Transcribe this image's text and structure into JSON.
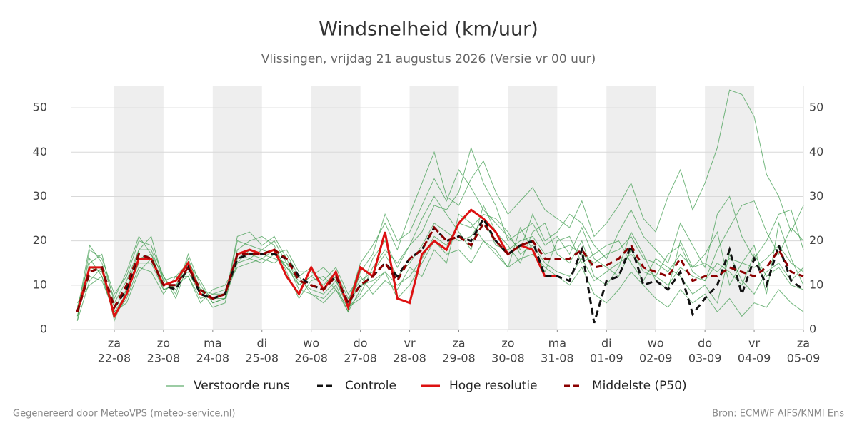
{
  "chart_data": {
    "type": "line",
    "title": "Windsnelheid (km/uur)",
    "subtitle": "Vlissingen, vrijdag 21 augustus 2026 (Versie vr 00 uur)",
    "footer_left": "Gegenereerd door MeteoVPS (meteo-service.nl)",
    "footer_right": "Bron: ECMWF AIFS/KNMI Ens",
    "xlim": [
      0.13,
      15
    ],
    "ylim": [
      0,
      55
    ],
    "yticks": [
      0,
      10,
      20,
      30,
      40,
      50
    ],
    "grid": true,
    "xticks": [
      {
        "value": 1,
        "label": "za",
        "date": "22-08"
      },
      {
        "value": 2,
        "label": "zo",
        "date": "23-08"
      },
      {
        "value": 3,
        "label": "ma",
        "date": "24-08"
      },
      {
        "value": 4,
        "label": "di",
        "date": "25-08"
      },
      {
        "value": 5,
        "label": "wo",
        "date": "26-08"
      },
      {
        "value": 6,
        "label": "do",
        "date": "27-08"
      },
      {
        "value": 7,
        "label": "vr",
        "date": "28-08"
      },
      {
        "value": 8,
        "label": "za",
        "date": "29-08"
      },
      {
        "value": 9,
        "label": "zo",
        "date": "30-08"
      },
      {
        "value": 10,
        "label": "ma",
        "date": "31-08"
      },
      {
        "value": 11,
        "label": "di",
        "date": "01-09"
      },
      {
        "value": 12,
        "label": "wo",
        "date": "02-09"
      },
      {
        "value": 13,
        "label": "do",
        "date": "03-09"
      },
      {
        "value": 14,
        "label": "vr",
        "date": "04-09"
      },
      {
        "value": 15,
        "label": "za",
        "date": "05-09"
      }
    ],
    "x": [
      0.25,
      0.5,
      0.75,
      1,
      1.25,
      1.5,
      1.75,
      2,
      2.25,
      2.5,
      2.75,
      3,
      3.25,
      3.5,
      3.75,
      4,
      4.25,
      4.5,
      4.75,
      5,
      5.25,
      5.5,
      5.75,
      6,
      6.25,
      6.5,
      6.75,
      7,
      7.25,
      7.5,
      7.75,
      8,
      8.25,
      8.5,
      8.75,
      9,
      9.25,
      9.5,
      9.75,
      10,
      10.25,
      10.5,
      10.75,
      11,
      11.25,
      11.5,
      11.75,
      12,
      12.25,
      12.5,
      12.75,
      13,
      13.25,
      13.5,
      13.75,
      14,
      14.25,
      14.5,
      14.75,
      15
    ],
    "ensemble": {
      "name": "Verstoorde runs",
      "color": "#3a9a4a",
      "members": [
        [
          2,
          18,
          16,
          8,
          12,
          20,
          19,
          12,
          8,
          17,
          10,
          6,
          7,
          20,
          19,
          18,
          20,
          15,
          9,
          8,
          7,
          10,
          4,
          9,
          16,
          20,
          14,
          19,
          25,
          30,
          26,
          22,
          18,
          28,
          22,
          19,
          15,
          22,
          24,
          17,
          15,
          20,
          12,
          10,
          14,
          22,
          17,
          11,
          9,
          20,
          14,
          17,
          22,
          10,
          15,
          19,
          8,
          24,
          16,
          10
        ],
        [
          6,
          10,
          12,
          3,
          7,
          14,
          13,
          8,
          12,
          12,
          6,
          9,
          10,
          15,
          16,
          15,
          17,
          18,
          13,
          13,
          11,
          14,
          8,
          12,
          8,
          11,
          9,
          14,
          12,
          18,
          15,
          26,
          24,
          20,
          17,
          14,
          23,
          18,
          13,
          20,
          21,
          15,
          17,
          19,
          20,
          15,
          11,
          16,
          14,
          12,
          8,
          10,
          6,
          17,
          11,
          8,
          13,
          15,
          11,
          14
        ],
        [
          3,
          15,
          17,
          6,
          11,
          18,
          21,
          11,
          9,
          16,
          9,
          5,
          6,
          18,
          20,
          21,
          19,
          13,
          7,
          11,
          12,
          9,
          4,
          13,
          17,
          26,
          20,
          22,
          28,
          34,
          29,
          36,
          32,
          27,
          24,
          21,
          18,
          26,
          20,
          22,
          26,
          24,
          19,
          16,
          22,
          27,
          21,
          18,
          15,
          24,
          19,
          14,
          26,
          30,
          21,
          16,
          20,
          26,
          27,
          18
        ],
        [
          5,
          12,
          11,
          4,
          8,
          15,
          15,
          9,
          10,
          12,
          7,
          8,
          9,
          14,
          15,
          16,
          15,
          17,
          12,
          8,
          6,
          9,
          5,
          7,
          10,
          13,
          7,
          10,
          15,
          20,
          17,
          18,
          15,
          20,
          18,
          14,
          16,
          17,
          14,
          12,
          10,
          14,
          8,
          6,
          9,
          13,
          10,
          7,
          5,
          9,
          6,
          8,
          4,
          7,
          3,
          6,
          5,
          9,
          6,
          4
        ],
        [
          4,
          19,
          15,
          7,
          13,
          21,
          17,
          12,
          7,
          15,
          11,
          6,
          7,
          21,
          22,
          19,
          21,
          16,
          10,
          12,
          14,
          11,
          6,
          15,
          19,
          24,
          18,
          26,
          33,
          40,
          30,
          28,
          34,
          38,
          31,
          26,
          29,
          32,
          27,
          25,
          23,
          29,
          21,
          24,
          28,
          33,
          25,
          22,
          30,
          36,
          27,
          33,
          41,
          54,
          53,
          48,
          35,
          30,
          22,
          28
        ],
        [
          3,
          14,
          13,
          5,
          9,
          16,
          17,
          10,
          11,
          13,
          8,
          7,
          8,
          16,
          17,
          16,
          18,
          14,
          10,
          12,
          10,
          13,
          7,
          11,
          13,
          17,
          12,
          15,
          19,
          24,
          22,
          20,
          21,
          25,
          19,
          18,
          20,
          21,
          17,
          18,
          19,
          17,
          15,
          17,
          18,
          21,
          16,
          15,
          13,
          17,
          14,
          15,
          13,
          16,
          15,
          14,
          16,
          19,
          15,
          13
        ],
        [
          2,
          11,
          14,
          2,
          9,
          18,
          18,
          11,
          12,
          15,
          9,
          8,
          8,
          17,
          16,
          18,
          17,
          14,
          11,
          9,
          8,
          11,
          5,
          8,
          14,
          18,
          15,
          19,
          22,
          28,
          27,
          31,
          41,
          33,
          28,
          20,
          22,
          24,
          19,
          21,
          17,
          23,
          16,
          14,
          12,
          18,
          13,
          12,
          10,
          14,
          12,
          11,
          18,
          23,
          28,
          29,
          22,
          17,
          23,
          20
        ],
        [
          5,
          16,
          12,
          4,
          6,
          13,
          16,
          9,
          10,
          14,
          8,
          7,
          7,
          15,
          18,
          17,
          16,
          15,
          12,
          14,
          9,
          12,
          6,
          10,
          11,
          13,
          10,
          12,
          16,
          21,
          19,
          24,
          23,
          26,
          25,
          22,
          17,
          19,
          15,
          13,
          12,
          16,
          11,
          13,
          15,
          17,
          14,
          12,
          17,
          19,
          13,
          11,
          15,
          13,
          10,
          17,
          12,
          14,
          10,
          9
        ]
      ]
    },
    "series": [
      {
        "name": "Controle",
        "color": "#111111",
        "dash": true,
        "values": [
          4,
          13,
          14,
          5,
          9,
          17,
          16,
          10,
          9,
          14,
          8,
          7,
          8,
          16,
          17,
          17,
          17,
          16,
          12,
          10,
          9,
          12,
          6,
          10,
          12,
          15,
          12,
          16,
          18,
          23,
          20,
          21,
          20,
          25,
          20,
          17,
          19,
          20,
          12,
          12,
          11,
          18,
          1.5,
          11,
          12,
          19,
          10,
          11,
          9,
          13,
          3.5,
          7,
          10,
          18,
          8,
          16,
          10,
          19,
          11,
          9
        ]
      },
      {
        "name": "Hoge resolutie",
        "color": "#dd1111",
        "dash": false,
        "values": [
          4,
          14,
          14,
          3,
          8,
          16,
          16,
          10,
          11,
          15,
          8,
          7,
          8,
          17,
          18,
          17,
          18,
          12,
          8,
          14,
          9,
          13,
          5,
          14,
          12,
          22,
          7,
          6,
          17,
          20,
          18,
          24,
          27,
          25,
          22,
          17,
          19,
          18,
          12,
          12,
          null,
          null,
          null,
          null,
          null,
          null,
          null,
          null,
          null,
          null,
          null,
          null,
          null,
          null,
          null,
          null,
          null,
          null,
          null,
          null
        ]
      },
      {
        "name": "Middelste (P50)",
        "color": "#8b0000",
        "dash": true,
        "values": [
          4,
          13,
          14,
          5,
          10,
          17,
          16,
          10,
          10,
          14,
          9,
          7,
          8,
          17,
          17,
          17,
          18,
          16,
          11,
          10,
          9,
          12,
          6,
          10,
          12,
          15,
          11,
          16,
          18,
          23,
          20,
          21,
          19,
          24,
          20,
          17,
          19,
          20,
          16,
          16,
          16,
          18,
          14,
          14.5,
          16,
          19,
          14,
          13,
          12,
          16,
          11,
          12,
          12,
          14,
          13,
          12,
          14,
          18,
          13,
          12
        ]
      }
    ]
  }
}
